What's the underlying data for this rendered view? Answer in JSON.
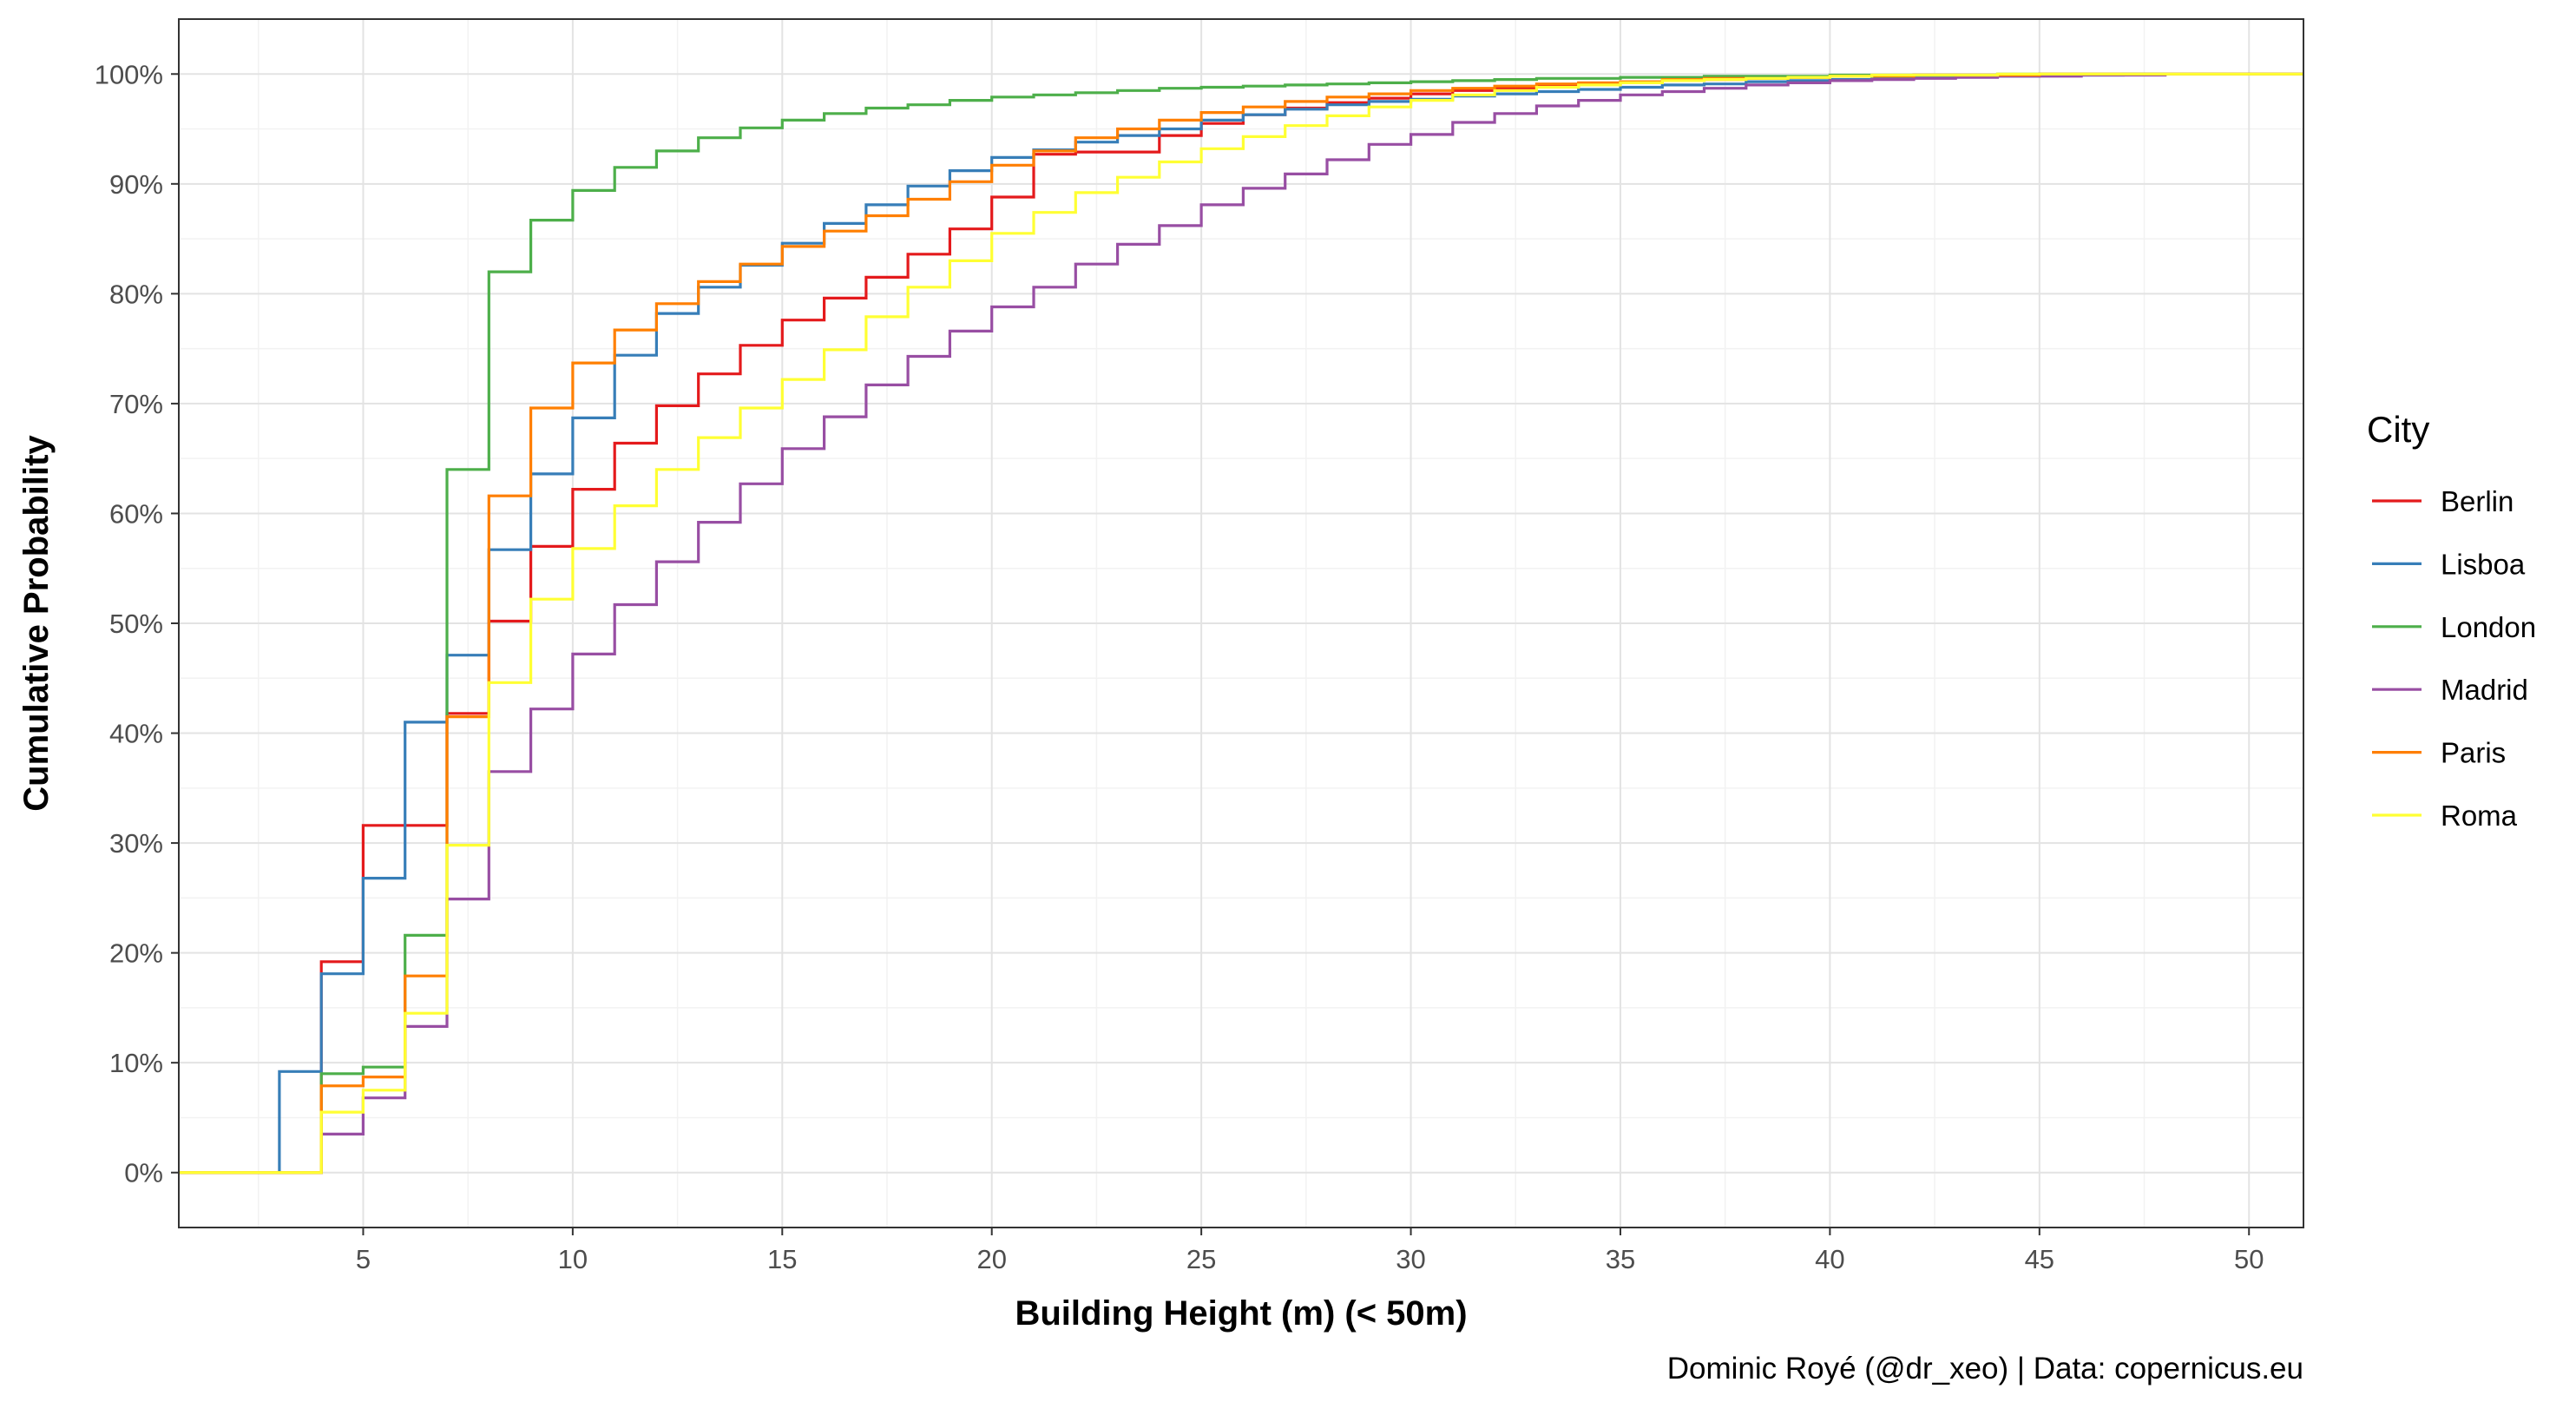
{
  "chart_data": {
    "type": "line",
    "step": true,
    "xlabel": "Building Height (m) (< 50m)",
    "ylabel": "Cumulative Probability",
    "caption": "Dominic Royé (@dr_xeo) | Data: copernicus.eu",
    "xlim": [
      0.6,
      51.3
    ],
    "ylim": [
      -0.05,
      1.05
    ],
    "x_ticks": [
      5,
      10,
      15,
      20,
      25,
      30,
      35,
      40,
      45,
      50
    ],
    "x_tick_labels": [
      "5",
      "10",
      "15",
      "20",
      "25",
      "30",
      "35",
      "40",
      "45",
      "50"
    ],
    "y_ticks": [
      0,
      0.1,
      0.2,
      0.3,
      0.4,
      0.5,
      0.6,
      0.7,
      0.8,
      0.9,
      1.0
    ],
    "y_tick_labels": [
      "0%",
      "10%",
      "20%",
      "30%",
      "40%",
      "50%",
      "60%",
      "70%",
      "80%",
      "90%",
      "100%"
    ],
    "grid": true,
    "legend": {
      "title": "City",
      "position": "right"
    },
    "series": [
      {
        "name": "Berlin",
        "color": "#E41A1C",
        "x": [
          0.6,
          3,
          4,
          5,
          6,
          7,
          8,
          9,
          10,
          11,
          12,
          13,
          14,
          15,
          16,
          17,
          18,
          19,
          20,
          21,
          22,
          23,
          24,
          25,
          26,
          27,
          28,
          29,
          30,
          31,
          32,
          33,
          34,
          35,
          36,
          37,
          38,
          39,
          40,
          41,
          42,
          43,
          44,
          45,
          46,
          47,
          48
        ],
        "y": [
          0,
          0,
          0.192,
          0.316,
          0.316,
          0.418,
          0.502,
          0.57,
          0.622,
          0.664,
          0.698,
          0.727,
          0.753,
          0.776,
          0.796,
          0.815,
          0.836,
          0.859,
          0.888,
          0.927,
          0.929,
          0.929,
          0.944,
          0.955,
          0.963,
          0.969,
          0.974,
          0.978,
          0.982,
          0.985,
          0.987,
          0.989,
          0.991,
          0.993,
          0.994,
          0.995,
          0.996,
          0.997,
          0.998,
          0.998,
          0.999,
          0.999,
          0.999,
          1,
          1,
          1,
          1
        ]
      },
      {
        "name": "Lisboa",
        "color": "#377EB8",
        "x": [
          0.6,
          3,
          4,
          5,
          6,
          7,
          8,
          9,
          10,
          11,
          12,
          13,
          14,
          15,
          16,
          17,
          18,
          19,
          20,
          21,
          22,
          23,
          24,
          25,
          26,
          27,
          28,
          29,
          30,
          31,
          32,
          33,
          34,
          35,
          36,
          37,
          38,
          39,
          40,
          41,
          42,
          43,
          44,
          45,
          46,
          47,
          48
        ],
        "y": [
          0,
          0.092,
          0.181,
          0.268,
          0.41,
          0.471,
          0.567,
          0.636,
          0.687,
          0.744,
          0.782,
          0.806,
          0.826,
          0.846,
          0.864,
          0.881,
          0.898,
          0.912,
          0.924,
          0.931,
          0.938,
          0.944,
          0.95,
          0.958,
          0.963,
          0.968,
          0.972,
          0.975,
          0.977,
          0.98,
          0.982,
          0.984,
          0.986,
          0.988,
          0.99,
          0.991,
          0.993,
          0.994,
          0.995,
          0.996,
          0.997,
          0.998,
          0.998,
          0.999,
          0.999,
          1,
          1
        ]
      },
      {
        "name": "London",
        "color": "#4DAF4A",
        "x": [
          0.6,
          3,
          4,
          5,
          6,
          7,
          8,
          9,
          10,
          11,
          12,
          13,
          14,
          15,
          16,
          17,
          18,
          19,
          20,
          21,
          22,
          23,
          24,
          25,
          26,
          27,
          28,
          29,
          30,
          31,
          32,
          33,
          34,
          35,
          36,
          37,
          38,
          39,
          40,
          41,
          42,
          43,
          44,
          45,
          46,
          47,
          48
        ],
        "y": [
          0,
          0,
          0.09,
          0.096,
          0.216,
          0.64,
          0.82,
          0.867,
          0.894,
          0.915,
          0.93,
          0.942,
          0.951,
          0.958,
          0.964,
          0.969,
          0.972,
          0.976,
          0.979,
          0.981,
          0.983,
          0.985,
          0.987,
          0.988,
          0.989,
          0.99,
          0.991,
          0.992,
          0.993,
          0.994,
          0.995,
          0.996,
          0.996,
          0.997,
          0.997,
          0.998,
          0.998,
          0.998,
          0.999,
          0.999,
          0.999,
          0.999,
          1,
          1,
          1,
          1,
          1
        ]
      },
      {
        "name": "Madrid",
        "color": "#984EA3",
        "x": [
          0.6,
          3,
          4,
          5,
          6,
          7,
          8,
          9,
          10,
          11,
          12,
          13,
          14,
          15,
          16,
          17,
          18,
          19,
          20,
          21,
          22,
          23,
          24,
          25,
          26,
          27,
          28,
          29,
          30,
          31,
          32,
          33,
          34,
          35,
          36,
          37,
          38,
          39,
          40,
          41,
          42,
          43,
          44,
          45,
          46,
          47,
          48
        ],
        "y": [
          0,
          0,
          0.035,
          0.068,
          0.133,
          0.249,
          0.365,
          0.422,
          0.472,
          0.517,
          0.556,
          0.592,
          0.627,
          0.659,
          0.688,
          0.717,
          0.743,
          0.766,
          0.788,
          0.806,
          0.827,
          0.845,
          0.862,
          0.881,
          0.896,
          0.909,
          0.922,
          0.936,
          0.945,
          0.956,
          0.964,
          0.971,
          0.976,
          0.981,
          0.984,
          0.987,
          0.99,
          0.992,
          0.994,
          0.995,
          0.996,
          0.997,
          0.998,
          0.998,
          0.999,
          0.999,
          1
        ]
      },
      {
        "name": "Paris",
        "color": "#FF7F00",
        "x": [
          0.6,
          3,
          4,
          5,
          6,
          7,
          8,
          9,
          10,
          11,
          12,
          13,
          14,
          15,
          16,
          17,
          18,
          19,
          20,
          21,
          22,
          23,
          24,
          25,
          26,
          27,
          28,
          29,
          30,
          31,
          32,
          33,
          34,
          35,
          36,
          37,
          38,
          39,
          40,
          41,
          42,
          43,
          44,
          45,
          46,
          47,
          48
        ],
        "y": [
          0,
          0,
          0.079,
          0.087,
          0.179,
          0.415,
          0.616,
          0.696,
          0.737,
          0.767,
          0.791,
          0.811,
          0.827,
          0.843,
          0.857,
          0.871,
          0.886,
          0.902,
          0.917,
          0.93,
          0.942,
          0.95,
          0.958,
          0.965,
          0.97,
          0.975,
          0.979,
          0.982,
          0.985,
          0.987,
          0.989,
          0.991,
          0.992,
          0.993,
          0.995,
          0.996,
          0.996,
          0.997,
          0.998,
          0.998,
          0.999,
          0.999,
          0.999,
          1,
          1,
          1,
          1
        ]
      },
      {
        "name": "Roma",
        "color": "#FFFF33",
        "x": [
          0.6,
          3,
          4,
          5,
          6,
          7,
          8,
          9,
          10,
          11,
          12,
          13,
          14,
          15,
          16,
          17,
          18,
          19,
          20,
          21,
          22,
          23,
          24,
          25,
          26,
          27,
          28,
          29,
          30,
          31,
          32,
          33,
          34,
          35,
          36,
          37,
          38,
          39,
          40,
          41,
          42,
          43,
          44,
          45,
          46,
          47,
          48
        ],
        "y": [
          0,
          0,
          0.055,
          0.075,
          0.145,
          0.298,
          0.446,
          0.522,
          0.568,
          0.607,
          0.64,
          0.669,
          0.696,
          0.722,
          0.749,
          0.779,
          0.806,
          0.83,
          0.855,
          0.874,
          0.892,
          0.906,
          0.92,
          0.932,
          0.943,
          0.953,
          0.962,
          0.97,
          0.976,
          0.981,
          0.985,
          0.988,
          0.99,
          0.992,
          0.994,
          0.995,
          0.996,
          0.997,
          0.998,
          0.999,
          0.999,
          0.999,
          1,
          1,
          1,
          1,
          1
        ]
      }
    ]
  }
}
